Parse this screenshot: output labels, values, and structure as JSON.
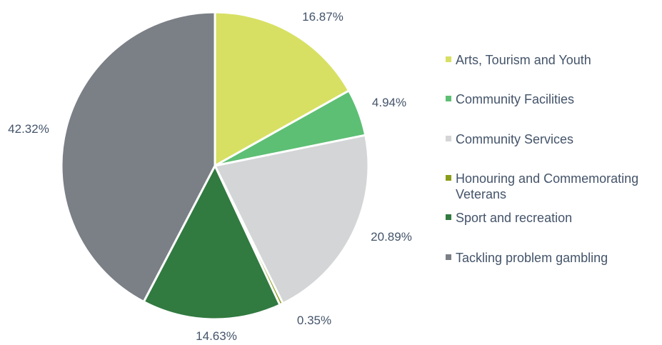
{
  "chart_data": {
    "type": "pie",
    "title": "",
    "categories": [
      "Arts, Tourism and Youth",
      "Community Facilities",
      "Community Services",
      "Honouring and Commemorating Veterans",
      "Sport and recreation",
      "Tackling problem gambling"
    ],
    "values": [
      16.87,
      4.94,
      20.89,
      0.35,
      14.63,
      42.32
    ],
    "data_labels": [
      "16.87%",
      "4.94%",
      "20.89%",
      "0.35%",
      "14.63%",
      "42.32%"
    ],
    "legend_lines": [
      [
        "Arts, Tourism and Youth"
      ],
      [
        "Community Facilities"
      ],
      [
        "Community Services"
      ],
      [
        "Honouring and Commemorating",
        "Veterans"
      ],
      [
        "Sport and recreation"
      ],
      [
        "Tackling problem gambling"
      ]
    ],
    "colors": [
      "#d7e063",
      "#5dbf74",
      "#d4d5d7",
      "#8b9c18",
      "#317a40",
      "#7b7f86"
    ],
    "legend_position": "right",
    "start_angle": "12 o'clock, clockwise"
  }
}
